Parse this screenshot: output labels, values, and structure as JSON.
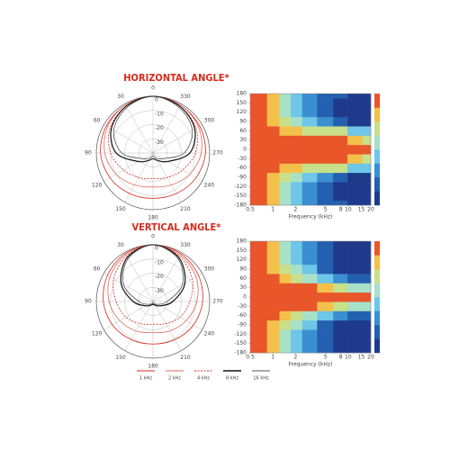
{
  "chart_data": [
    {
      "type": "polar",
      "title": "HORIZONTAL ANGLE*",
      "theta": [
        0,
        30,
        60,
        90,
        120,
        150,
        180,
        210,
        240,
        270,
        300,
        330
      ],
      "rlim": [
        -40,
        0
      ],
      "rticks": [
        0,
        -10,
        -20,
        -30
      ],
      "series": [
        {
          "name": "1 kHz",
          "color": "#d42a1c",
          "dash": false,
          "values": [
            0,
            -1,
            -2,
            -3,
            -5,
            -7,
            -8,
            -7,
            -5,
            -3,
            -2,
            -1
          ]
        },
        {
          "name": "2 kHz",
          "color": "#e06a5e",
          "dash": false,
          "values": [
            0,
            -1,
            -3,
            -6,
            -10,
            -14,
            -16,
            -14,
            -10,
            -6,
            -3,
            -1
          ]
        },
        {
          "name": "4 kHz",
          "color": "#d42a1c",
          "dash": true,
          "values": [
            0,
            -2,
            -5,
            -10,
            -16,
            -20,
            -22,
            -20,
            -16,
            -10,
            -5,
            -2
          ]
        },
        {
          "name": "8 kHz",
          "color": "#111111",
          "dash": false,
          "values": [
            0,
            -2,
            -6,
            -14,
            -28,
            -34,
            -36,
            -34,
            -28,
            -14,
            -6,
            -2
          ]
        },
        {
          "name": "16 kHz",
          "color": "#555555",
          "dash": false,
          "values": [
            0,
            -3,
            -8,
            -18,
            -32,
            -36,
            -38,
            -36,
            -32,
            -18,
            -8,
            -3
          ]
        }
      ]
    },
    {
      "type": "heatmap",
      "xlabel": "Frequency (kHz)",
      "log_x": true,
      "x": [
        0.5,
        0.7,
        1,
        1.5,
        2,
        3,
        5,
        8,
        12,
        20
      ],
      "y": [
        -180,
        -150,
        -120,
        -90,
        -60,
        -30,
        0,
        30,
        60,
        90,
        120,
        150,
        180
      ],
      "xlim": [
        0.5,
        20
      ],
      "ylim": [
        -180,
        180
      ],
      "xticks": [
        0.5,
        1,
        2,
        5,
        8,
        10,
        15,
        20
      ],
      "yticks": [
        180,
        150,
        120,
        90,
        60,
        30,
        0,
        -30,
        -60,
        -90,
        -120,
        -150,
        -180
      ],
      "zlim": [
        -30,
        0
      ],
      "colors": [
        "#1f3a8a",
        "#2460b0",
        "#3a8fd0",
        "#6ec6e8",
        "#a8e0c8",
        "#c8e08a",
        "#f3c04a",
        "#e8562a"
      ],
      "z": [
        [
          -2,
          -3,
          -6,
          -12,
          -16,
          -19,
          -24,
          -26,
          -27,
          -27
        ],
        [
          -2,
          -3,
          -6,
          -12,
          -16,
          -20,
          -25,
          -27,
          -28,
          -28
        ],
        [
          -2,
          -3,
          -6,
          -12,
          -16,
          -20,
          -24,
          -27,
          -28,
          -29
        ],
        [
          -2,
          -3,
          -5,
          -9,
          -13,
          -16,
          -19,
          -23,
          -27,
          -28
        ],
        [
          -1,
          -2,
          -3,
          -5,
          -6,
          -8,
          -9,
          -11,
          -16,
          -18
        ],
        [
          0,
          0,
          0,
          -1,
          -1,
          -1,
          -2,
          -3,
          -5,
          -8
        ],
        [
          0,
          0,
          0,
          0,
          0,
          0,
          0,
          0,
          -1,
          -2
        ],
        [
          0,
          0,
          0,
          -1,
          -1,
          -1,
          -2,
          -3,
          -5,
          -8
        ],
        [
          -1,
          -2,
          -3,
          -5,
          -6,
          -8,
          -9,
          -11,
          -16,
          -18
        ],
        [
          -2,
          -3,
          -5,
          -9,
          -13,
          -16,
          -19,
          -23,
          -27,
          -28
        ],
        [
          -2,
          -3,
          -6,
          -12,
          -16,
          -20,
          -24,
          -27,
          -28,
          -29
        ],
        [
          -2,
          -3,
          -6,
          -12,
          -16,
          -20,
          -25,
          -27,
          -28,
          -28
        ],
        [
          -2,
          -3,
          -6,
          -12,
          -16,
          -19,
          -24,
          -26,
          -27,
          -27
        ]
      ]
    },
    {
      "type": "polar",
      "title": "VERTICAL ANGLE*",
      "theta": [
        0,
        30,
        60,
        90,
        120,
        150,
        180,
        210,
        240,
        270,
        300,
        330
      ],
      "rlim": [
        -40,
        0
      ],
      "rticks": [
        0,
        -10,
        -20,
        -30
      ],
      "series": [
        {
          "color": "#d42a1c",
          "dash": false,
          "values": [
            0,
            -1,
            -3,
            -5,
            -7,
            -9,
            -10,
            -9,
            -7,
            -5,
            -3,
            -1
          ]
        },
        {
          "color": "#e06a5e",
          "dash": false,
          "values": [
            0,
            -2,
            -5,
            -9,
            -13,
            -16,
            -18,
            -16,
            -13,
            -9,
            -5,
            -2
          ]
        },
        {
          "color": "#d42a1c",
          "dash": true,
          "values": [
            0,
            -3,
            -8,
            -14,
            -18,
            -22,
            -24,
            -22,
            -18,
            -14,
            -8,
            -3
          ]
        },
        {
          "color": "#111111",
          "dash": false,
          "values": [
            0,
            -4,
            -14,
            -26,
            -34,
            -37,
            -38,
            -37,
            -34,
            -26,
            -14,
            -4
          ]
        },
        {
          "color": "#555555",
          "dash": false,
          "values": [
            0,
            -5,
            -16,
            -30,
            -36,
            -38,
            -39,
            -38,
            -36,
            -30,
            -16,
            -5
          ]
        }
      ]
    },
    {
      "type": "heatmap",
      "xlabel": "Frequency (kHz)",
      "log_x": true,
      "x": [
        0.5,
        0.7,
        1,
        1.5,
        2,
        3,
        5,
        8,
        12,
        20
      ],
      "y": [
        -180,
        -150,
        -120,
        -90,
        -60,
        -30,
        0,
        30,
        60,
        90,
        120,
        150,
        180
      ],
      "xlim": [
        0.5,
        20
      ],
      "ylim": [
        -180,
        180
      ],
      "xticks": [
        0.5,
        1,
        2,
        5,
        8,
        10,
        15,
        20
      ],
      "yticks": [
        180,
        150,
        120,
        90,
        60,
        30,
        0,
        -30,
        -60,
        -90,
        -120,
        -150,
        -180
      ],
      "zlim": [
        -30,
        0
      ],
      "colors": [
        "#1f3a8a",
        "#2460b0",
        "#3a8fd0",
        "#6ec6e8",
        "#a8e0c8",
        "#c8e08a",
        "#f3c04a",
        "#e8562a"
      ],
      "z": [
        [
          -2,
          -3,
          -6,
          -12,
          -16,
          -20,
          -25,
          -27,
          -27,
          -27
        ],
        [
          -2,
          -3,
          -6,
          -12,
          -16,
          -21,
          -26,
          -28,
          -28,
          -28
        ],
        [
          -2,
          -3,
          -6,
          -12,
          -17,
          -21,
          -26,
          -28,
          -29,
          -29
        ],
        [
          -2,
          -3,
          -5,
          -10,
          -14,
          -18,
          -23,
          -27,
          -28,
          -28
        ],
        [
          -1,
          -2,
          -3,
          -6,
          -9,
          -13,
          -17,
          -21,
          -25,
          -26
        ],
        [
          0,
          0,
          -1,
          -1,
          -2,
          -3,
          -5,
          -8,
          -12,
          -15
        ],
        [
          0,
          0,
          0,
          0,
          0,
          0,
          0,
          0,
          -1,
          -2
        ],
        [
          0,
          0,
          -1,
          -1,
          -2,
          -3,
          -5,
          -8,
          -12,
          -15
        ],
        [
          -1,
          -2,
          -3,
          -6,
          -9,
          -13,
          -17,
          -21,
          -25,
          -26
        ],
        [
          -2,
          -3,
          -5,
          -10,
          -14,
          -18,
          -23,
          -27,
          -28,
          -28
        ],
        [
          -2,
          -3,
          -6,
          -12,
          -17,
          -21,
          -26,
          -28,
          -29,
          -29
        ],
        [
          -2,
          -3,
          -6,
          -12,
          -16,
          -21,
          -26,
          -28,
          -28,
          -28
        ],
        [
          -2,
          -3,
          -6,
          -12,
          -16,
          -20,
          -25,
          -27,
          -27,
          -27
        ]
      ]
    }
  ]
}
